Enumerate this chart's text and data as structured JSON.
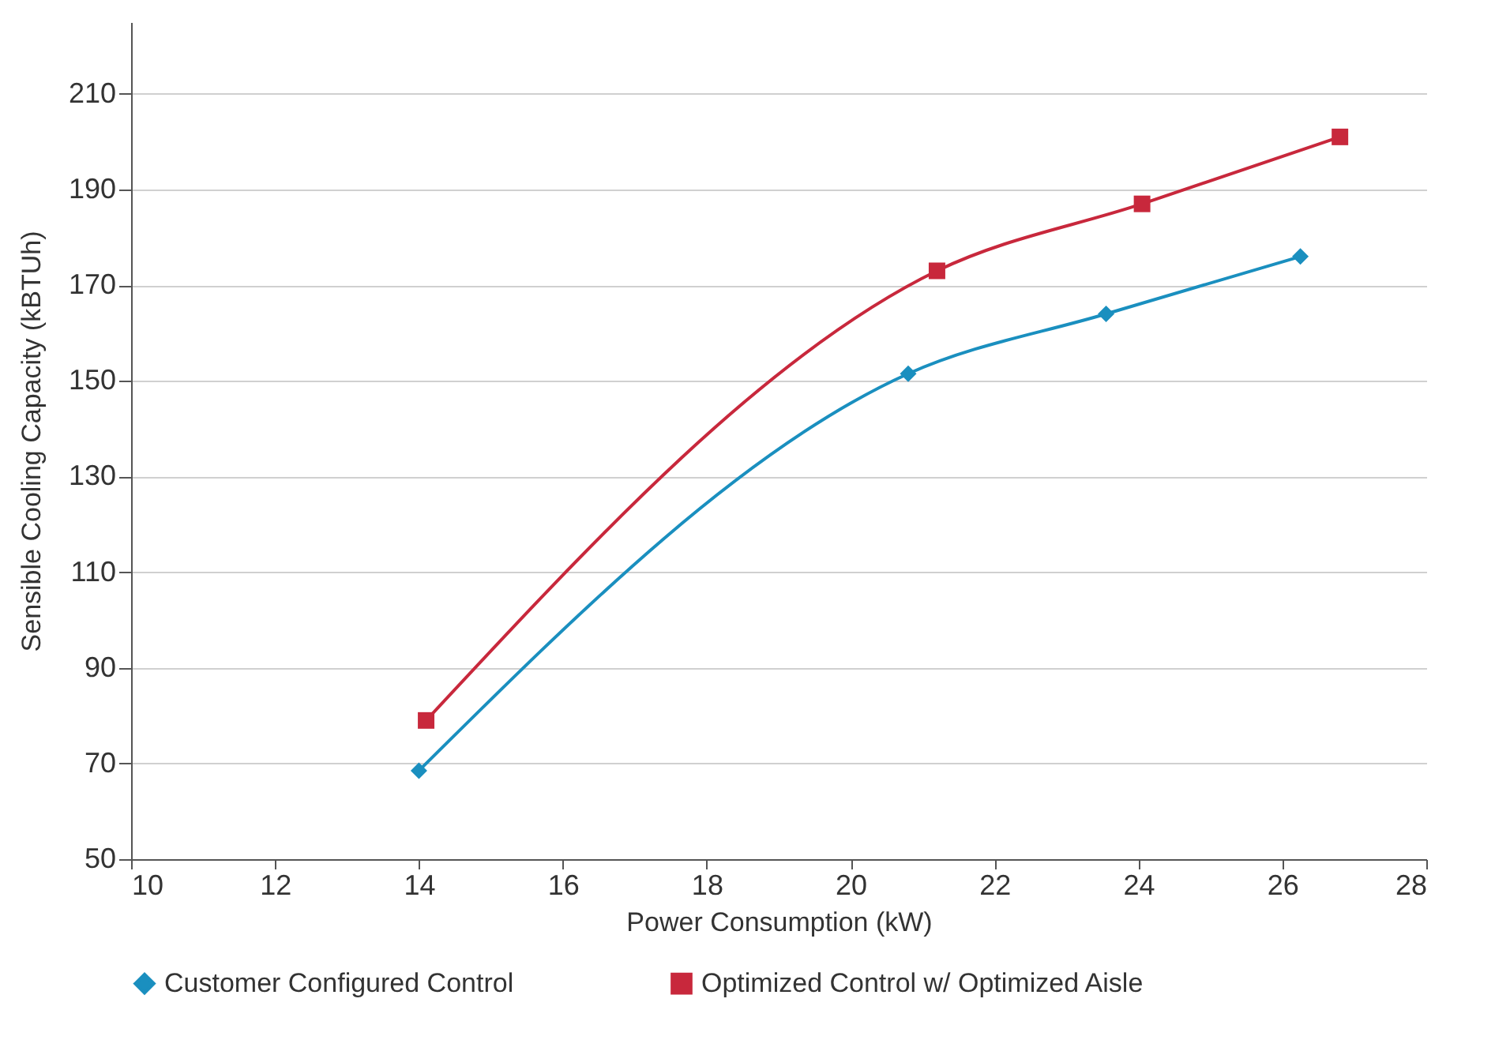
{
  "chart_data": {
    "type": "line",
    "xlabel": "Power Consumption (kW)",
    "ylabel": "Sensible Cooling Capacity (kBTUh)",
    "xlim": [
      10,
      28
    ],
    "xticks": [
      10,
      12,
      14,
      16,
      18,
      20,
      22,
      24,
      26,
      28
    ],
    "ylim": [
      50,
      225
    ],
    "yticks": [
      50,
      70,
      90,
      110,
      130,
      150,
      170,
      190,
      210
    ],
    "grid": "y",
    "legend": "bottom",
    "series": [
      {
        "name": "Customer Configured Control",
        "color": "#1a8fbf",
        "marker": "diamond",
        "x": [
          14.0,
          20.8,
          23.55,
          26.25
        ],
        "values": [
          68.5,
          151.5,
          164,
          176
        ]
      },
      {
        "name": "Optimized Control w/ Optimized Aisle",
        "color": "#c8283c",
        "marker": "square",
        "x": [
          14.1,
          21.2,
          24.05,
          26.8
        ],
        "values": [
          79,
          173,
          187,
          201
        ]
      }
    ]
  }
}
